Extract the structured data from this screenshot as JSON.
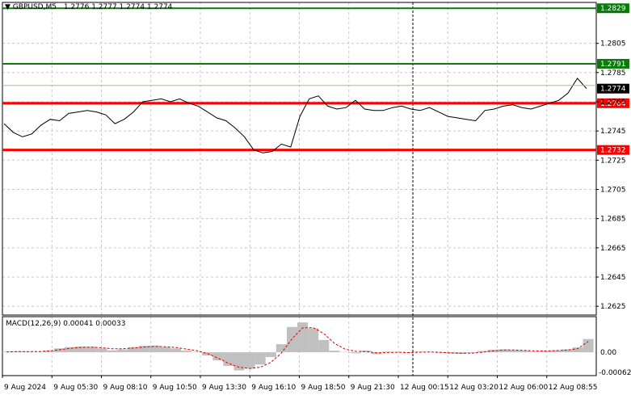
{
  "header": {
    "symbol": "GBPUSD,M5",
    "ohlc": "1.2776 1.2777 1.2774 1.2774"
  },
  "macd": {
    "label": "MACD(12,26,9) 0.00041 0.00033",
    "axis_labels": [
      "0.00",
      "-0.00062"
    ],
    "histogram_color": "#c0c0c0",
    "signal_color": "#e00000"
  },
  "colors": {
    "price_line": "#000000",
    "level_green": "#0a7a0a",
    "level_red": "#ff0000",
    "level_bid": "#d8a878",
    "grid": "#c8c8c8",
    "current_price_bg": "#000000"
  },
  "chart_data": {
    "type": "line",
    "title": "",
    "xlabel": "",
    "ylabel": "",
    "ylim": [
      1.2619,
      1.2833
    ],
    "y_ticks": [
      1.2805,
      1.2785,
      1.2765,
      1.2745,
      1.2725,
      1.2705,
      1.2685,
      1.2665,
      1.2645,
      1.2625
    ],
    "x_tick_labels": [
      "9 Aug 2024",
      "9 Aug 05:30",
      "9 Aug 08:10",
      "9 Aug 10:50",
      "9 Aug 13:30",
      "9 Aug 16:10",
      "9 Aug 18:50",
      "9 Aug 21:30",
      "12 Aug 00:15",
      "12 Aug 03:20",
      "12 Aug 06:00",
      "12 Aug 08:55"
    ],
    "horizontal_levels": [
      {
        "value": 1.2829,
        "label": "1.2829",
        "color": "green"
      },
      {
        "value": 1.2791,
        "label": "1.2791",
        "color": "green"
      },
      {
        "value": 1.2764,
        "label": "1.2764",
        "color": "red"
      },
      {
        "value": 1.2732,
        "label": "1.2732",
        "color": "red"
      }
    ],
    "current_price": {
      "value": 1.2774,
      "label": "1.2774"
    },
    "session_separator": "12 Aug 00:15",
    "series": [
      {
        "values": [
          1.275,
          1.2744,
          1.2741,
          1.2743,
          1.2749,
          1.2753,
          1.2752,
          1.2757,
          1.2758,
          1.2759,
          1.2758,
          1.2756,
          1.275,
          1.2753,
          1.2758,
          1.2765,
          1.2766,
          1.2767,
          1.2765,
          1.2767,
          1.2764,
          1.2762,
          1.2758,
          1.2754,
          1.2752,
          1.2747,
          1.2741,
          1.2732,
          1.273,
          1.2731,
          1.2736,
          1.2734,
          1.2755,
          1.2767,
          1.2769,
          1.2762,
          1.276,
          1.2761,
          1.2766,
          1.276,
          1.2759,
          1.2759,
          1.2761,
          1.2762,
          1.276,
          1.2759,
          1.2761,
          1.2758,
          1.2755,
          1.2754,
          1.2753,
          1.2752,
          1.2759,
          1.276,
          1.2762,
          1.2763,
          1.2761,
          1.276,
          1.2762,
          1.2764,
          1.2766,
          1.2771,
          1.2781,
          1.2774
        ]
      }
    ],
    "macd_histogram": [
      2e-05,
      3e-05,
      2e-05,
      1e-05,
      5e-05,
      0.00012,
      0.00016,
      0.00018,
      0.00017,
      0.00012,
      6e-05,
      9e-05,
      0.00016,
      0.0002,
      0.00021,
      0.00016,
      0.00012,
      5e-05,
      1e-05,
      -0.0001,
      -0.00025,
      -0.00042,
      -0.00056,
      -0.0005,
      -0.00038,
      -0.00015,
      0.00025,
      0.00078,
      0.00092,
      0.00074,
      0.00038,
      5e-05,
      1e-05,
      -3e-05,
      5e-05,
      -6e-05,
      2e-05,
      1e-05,
      -2e-05,
      2e-05,
      1e-05,
      -2e-05,
      -4e-05,
      -5e-05,
      -2e-05,
      4e-05,
      8e-05,
      9e-05,
      7e-05,
      5e-05,
      2e-05,
      4e-05,
      6e-05,
      9e-05,
      0.00015,
      0.00041
    ],
    "macd_signal": [
      1e-05,
      2e-05,
      2e-05,
      2e-05,
      4e-05,
      8e-05,
      0.00012,
      0.00015,
      0.00016,
      0.00014,
      0.00011,
      0.00011,
      0.00013,
      0.00016,
      0.00018,
      0.00017,
      0.00015,
      0.0001,
      5e-05,
      -4e-05,
      -0.00018,
      -0.00034,
      -0.00046,
      -0.0005,
      -0.00046,
      -0.00031,
      -2e-05,
      0.00042,
      0.00075,
      0.00076,
      0.00058,
      0.00028,
      0.0001,
      3e-05,
      2e-05,
      -2e-05,
      -1e-05,
      0.0,
      -1e-05,
      0.0,
      1e-05,
      0.0,
      -2e-05,
      -3e-05,
      -3e-05,
      0.0,
      4e-05,
      7e-05,
      7e-05,
      6e-05,
      4e-05,
      4e-05,
      5e-05,
      7e-05,
      0.00011,
      0.00033
    ],
    "macd_ylim": [
      -0.00062,
      0.001
    ]
  }
}
